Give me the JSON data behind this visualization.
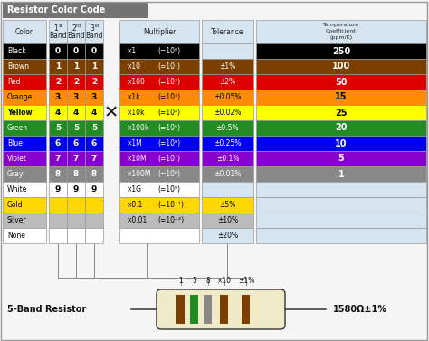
{
  "title": "Resistor Color Code",
  "title_bg": "#737373",
  "title_color": "#ffffff",
  "bg_color": "#f5f5f5",
  "table_bg": "#d6e4f0",
  "border_color": "#999999",
  "colors": {
    "Black": "#000000",
    "Brown": "#7B3F00",
    "Red": "#DD0000",
    "Orange": "#FF8C00",
    "Yellow": "#FFFF00",
    "Green": "#228B22",
    "Blue": "#0000EE",
    "Violet": "#8800CC",
    "Gray": "#888888",
    "White": "#FFFFFF",
    "Gold": "#FFD700",
    "Silver": "#BBBBBB",
    "None": "#FFFFFF"
  },
  "color_names": [
    "Black",
    "Brown",
    "Red",
    "Orange",
    "Yellow",
    "Green",
    "Blue",
    "Violet",
    "Gray",
    "White",
    "Gold",
    "Silver",
    "None"
  ],
  "band_values": [
    "0",
    "1",
    "2",
    "3",
    "4",
    "5",
    "6",
    "7",
    "8",
    "9",
    "",
    "",
    ""
  ],
  "mult_texts": [
    "×1",
    "×10",
    "×100",
    "×1k",
    "×10k",
    "×100k",
    "×1M",
    "×10M",
    "×100M",
    "×1G",
    "×0.1",
    "×0.01",
    ""
  ],
  "mult_exps": [
    "(=10⁰)",
    "(=10¹)",
    "(=10²)",
    "(=10³)",
    "(=10⁴)",
    "(=10⁵)",
    "(=10⁶)",
    "(=10⁷)",
    "(=10⁸)",
    "(=10⁹)",
    "(=10⁻¹)",
    "(=10⁻²)",
    ""
  ],
  "mult_color_names": [
    "Black",
    "Brown",
    "Red",
    "Orange",
    "Yellow",
    "Green",
    "Blue",
    "Violet",
    "Gray",
    "White",
    "Gold",
    "Silver",
    "None"
  ],
  "tol_texts": [
    "",
    "±1%",
    "±2%",
    "±0.05%",
    "±0.02%",
    "±0.5%",
    "±0.25%",
    "±0.1%",
    "±0.01%",
    "",
    "±5%",
    "±10%",
    "±20%"
  ],
  "tol_color_names": [
    "None",
    "Brown",
    "Red",
    "Orange",
    "Yellow",
    "Green",
    "Blue",
    "Violet",
    "Gray",
    "None",
    "Gold",
    "Silver",
    "None"
  ],
  "temp_texts": [
    "250",
    "100",
    "50",
    "15",
    "25",
    "20",
    "10",
    "5",
    "1",
    "",
    "",
    "",
    ""
  ],
  "temp_color_names": [
    "Black",
    "Brown",
    "Red",
    "Orange",
    "Yellow",
    "Green",
    "Blue",
    "Violet",
    "Gray",
    "None",
    "None",
    "None",
    "None"
  ],
  "resistor_value": "1580Ω±1%",
  "resistor_labels": [
    "1",
    "5",
    "8",
    "×10",
    "±1%"
  ],
  "band_colors_hex": [
    "#7B3F00",
    "#228B22",
    "#888888",
    "#7B3F00",
    "#7B3F00"
  ]
}
